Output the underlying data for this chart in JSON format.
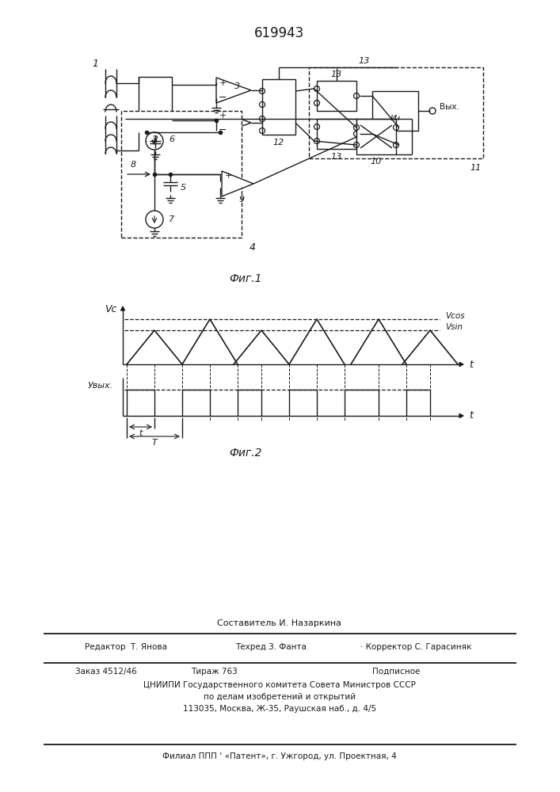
{
  "title": "619943",
  "fig1_caption": "Фиг.1",
  "fig2_caption": "Фиг.2",
  "line_color": "#1a1a1a",
  "footer": {
    "line1": "Составитель И. Назаркина",
    "editor": "Редактор  Т. Янова",
    "techred": "Техред З. Фанта",
    "corrector": "Корректор С. Гарасиняк",
    "order": "Заказ 4512/46",
    "tirazh": "Тираж 763",
    "podpisnoe": "Подписное",
    "tsnipi": "ЦНИИПИ Государственного комитета Совета Министров СССР",
    "dela": "по делам изобретений и открытий",
    "address": "113035, Москва, Ж-35, Раушская наб., д. 4/5",
    "filial": "Филиал ППП ‘ «Патент», г. Ужгород, ул. Проектная, 4"
  }
}
